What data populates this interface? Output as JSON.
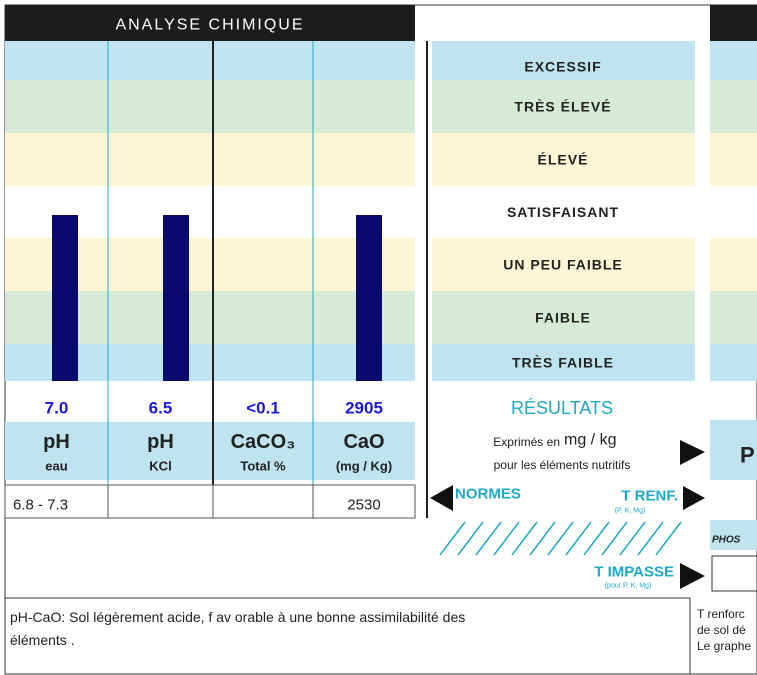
{
  "header": {
    "title": "ANALYSE CHIMIQUE"
  },
  "levels": [
    "EXCESSIF",
    "TRÈS ÉLEVÉ",
    "ÉLEVÉ",
    "SATISFAISANT",
    "UN PEU FAIBLE",
    "FAIBLE",
    "TRÈS FAIBLE"
  ],
  "columns": [
    {
      "value": "7.0",
      "name": "pH",
      "sub": "eau",
      "norm": "6.8 - 7.3"
    },
    {
      "value": "6.5",
      "name": "pH",
      "sub": "KCl",
      "norm": ""
    },
    {
      "value": "<0.1",
      "name": "CaCO₃",
      "sub": "Total %",
      "norm": ""
    },
    {
      "value": "2905",
      "name": "CaO",
      "sub": "(mg / Kg)",
      "norm": "2530"
    }
  ],
  "results": {
    "title": "RÉSULTATS",
    "line1_a": "Exprimés en",
    "line1_b": "mg / kg",
    "line2": "pour les éléments nutritifs",
    "normes": "NORMES",
    "t_renf": "T RENF.",
    "t_renf_sub": "(P, K, Mg)",
    "t_impasse": "T IMPASSE",
    "t_impasse_sub": "(pour P, K, Mg)"
  },
  "side": {
    "box": "P",
    "phos": "PHOS",
    "notes": [
      "T renforc",
      "de sol dé",
      "Le graphe"
    ]
  },
  "footer": {
    "lines": [
      "pH-CaO: Sol légèrement acide, f av orable à une bonne assimilabilité des",
      "éléments ."
    ]
  }
}
